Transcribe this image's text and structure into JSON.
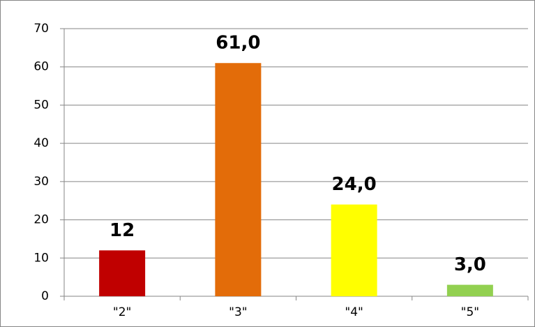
{
  "chart_data": {
    "type": "bar",
    "categories": [
      "\"2\"",
      "\"3\"",
      "\"4\"",
      "\"5\""
    ],
    "values": [
      12,
      61,
      24,
      3
    ],
    "value_labels": [
      "12",
      "61,0",
      "24,0",
      "3,0"
    ],
    "colors": [
      "#c00000",
      "#e36c09",
      "#ffff00",
      "#92d050"
    ],
    "ylim": [
      0,
      70
    ],
    "yticks": [
      0,
      10,
      20,
      30,
      40,
      50,
      60,
      70
    ],
    "grid": true
  }
}
